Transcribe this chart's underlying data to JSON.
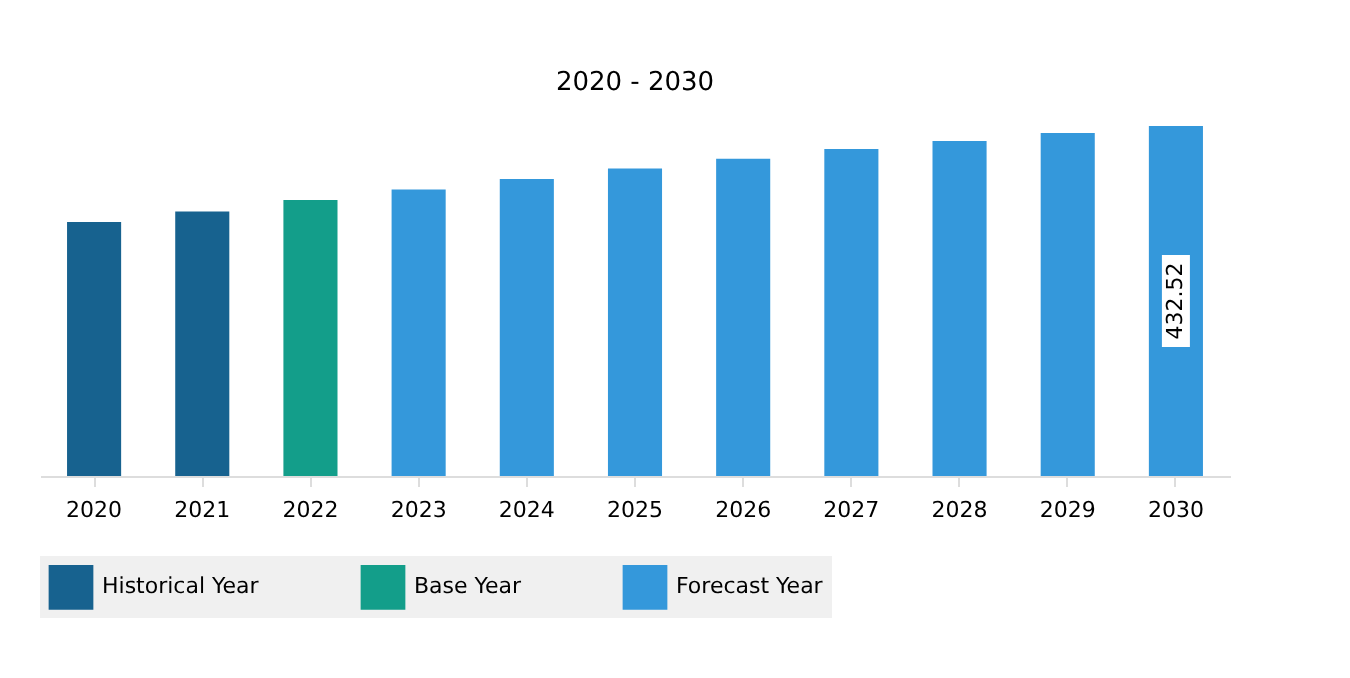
{
  "chart_data": {
    "type": "bar",
    "title": "2020 - 2030",
    "categories": [
      "2020",
      "2021",
      "2022",
      "2023",
      "2024",
      "2025",
      "2026",
      "2027",
      "2028",
      "2029",
      "2030"
    ],
    "series": [
      {
        "name": "Historical Year",
        "color": "#17628f",
        "values": [
          314,
          327,
          null,
          null,
          null,
          null,
          null,
          null,
          null,
          null,
          null
        ]
      },
      {
        "name": "Base Year",
        "color": "#139e8a",
        "values": [
          null,
          null,
          341,
          null,
          null,
          null,
          null,
          null,
          null,
          null,
          null
        ]
      },
      {
        "name": "Forecast Year",
        "color": "#3498db",
        "values": [
          null,
          null,
          null,
          354,
          367,
          380,
          392,
          404,
          414,
          424,
          432.52
        ],
        "value_labels": [
          null,
          null,
          null,
          null,
          null,
          null,
          null,
          null,
          null,
          null,
          "432.52"
        ]
      }
    ],
    "tick_labels": "x",
    "grid": false,
    "legend": "bottom"
  }
}
